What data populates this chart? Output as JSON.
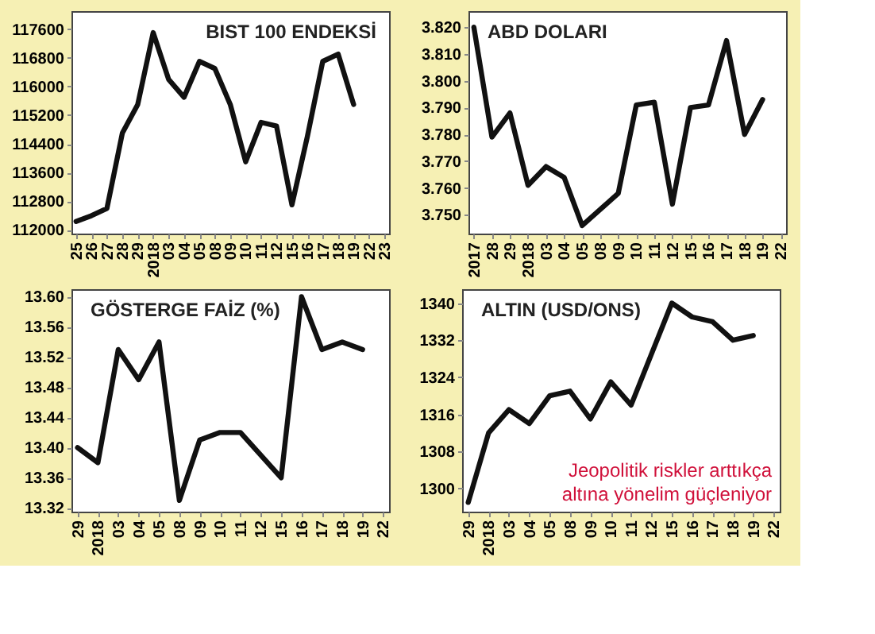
{
  "chart_data": [
    {
      "type": "line",
      "title": "BIST 100 ENDEKSİ",
      "categories": [
        "25",
        "26",
        "27",
        "28",
        "29",
        "2018",
        "03",
        "04",
        "05",
        "08",
        "09",
        "10",
        "11",
        "12",
        "15",
        "16",
        "17",
        "18",
        "19",
        "22",
        "23"
      ],
      "series": [
        {
          "color": "#111111",
          "values": [
            112240,
            112400,
            112600,
            114700,
            115500,
            117500,
            116200,
            115700,
            116700,
            116500,
            115500,
            113900,
            115000,
            114900,
            112700,
            114600,
            116700,
            116900,
            115500,
            null,
            null
          ]
        }
      ],
      "ylim": [
        111900,
        118100
      ],
      "yticks": [
        112000,
        112800,
        113600,
        114400,
        115200,
        116000,
        116800,
        117600
      ],
      "grid": false
    },
    {
      "type": "line",
      "title": "ABD DOLARI",
      "categories": [
        "2017",
        "28",
        "29",
        "2018",
        "03",
        "04",
        "05",
        "08",
        "09",
        "10",
        "11",
        "12",
        "15",
        "16",
        "17",
        "18",
        "19",
        "22"
      ],
      "series": [
        {
          "color": "#111111",
          "values": [
            3.82,
            3.779,
            3.788,
            3.761,
            3.768,
            3.764,
            3.746,
            3.752,
            3.758,
            3.791,
            3.792,
            3.754,
            3.79,
            3.791,
            3.815,
            3.78,
            3.793,
            null
          ]
        }
      ],
      "ylim": [
        3.743,
        3.826
      ],
      "yticks": [
        {
          "value": 3.75,
          "label": "3.750"
        },
        {
          "value": 3.76,
          "label": "3.760"
        },
        {
          "value": 3.77,
          "label": "3.770"
        },
        {
          "value": 3.78,
          "label": "3.780"
        },
        {
          "value": 3.79,
          "label": "3.790"
        },
        {
          "value": 3.8,
          "label": "3.800"
        },
        {
          "value": 3.81,
          "label": "3.810"
        },
        {
          "value": 3.82,
          "label": "3.820"
        }
      ],
      "grid": false
    },
    {
      "type": "line",
      "title": "GÖSTERGE FAİZ (%)",
      "categories": [
        "29",
        "2018",
        "03",
        "04",
        "05",
        "08",
        "09",
        "10",
        "11",
        "12",
        "15",
        "16",
        "17",
        "18",
        "19",
        "22"
      ],
      "series": [
        {
          "color": "#111111",
          "values": [
            13.4,
            13.38,
            13.53,
            13.49,
            13.54,
            13.33,
            13.41,
            13.42,
            13.42,
            13.39,
            13.36,
            13.6,
            13.53,
            13.54,
            13.53,
            null
          ]
        }
      ],
      "ylim": [
        13.315,
        13.61
      ],
      "yticks": [
        13.32,
        13.36,
        {
          "value": 13.4,
          "label": "13.40"
        },
        13.44,
        13.48,
        13.52,
        13.56,
        {
          "value": 13.6,
          "label": "13.60"
        }
      ],
      "grid": false
    },
    {
      "type": "line",
      "title": "ALTIN (USD/ONS)",
      "categories": [
        "29",
        "2018",
        "03",
        "04",
        "05",
        "08",
        "09",
        "10",
        "11",
        "12",
        "15",
        "16",
        "17",
        "18",
        "19",
        "22"
      ],
      "series": [
        {
          "color": "#111111",
          "values": [
            1297,
            1312,
            1317,
            1314,
            1320,
            1321,
            1315,
            1323,
            1318,
            1329,
            1340,
            1337,
            1336,
            1332,
            1333,
            null
          ]
        }
      ],
      "ylim": [
        1295,
        1343
      ],
      "yticks": [
        1300,
        1308,
        1316,
        1324,
        1332,
        1340
      ],
      "grid": false,
      "annotations": [
        "Jeopolitik riskler arttıkça",
        "altına yönelim güçleniyor"
      ]
    }
  ]
}
